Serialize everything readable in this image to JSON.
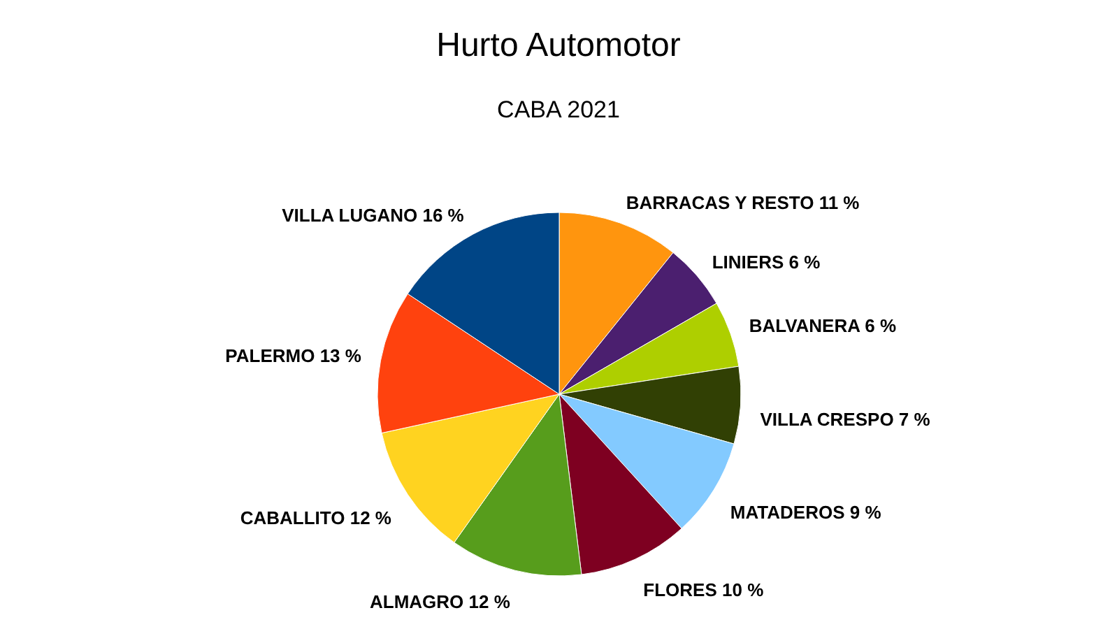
{
  "chart_data": {
    "type": "pie",
    "title": "Hurto Automotor",
    "subtitle": "CABA 2021",
    "categories": [
      "BARRACAS Y RESTO",
      "LINIERS",
      "BALVANERA",
      "VILLA CRESPO",
      "MATADEROS",
      "FLORES",
      "ALMAGRO",
      "CABALLITO",
      "PALERMO",
      "VILLA LUGANO"
    ],
    "values": [
      11,
      6,
      6,
      7,
      9,
      10,
      12,
      12,
      13,
      16
    ],
    "value_labels": [
      "11 %",
      "6 %",
      "6 %",
      "7 %",
      "9 %",
      "10 %",
      "12 %",
      "12 %",
      "13 %",
      "16 %"
    ],
    "colors": [
      "#ff950e",
      "#4b1f6f",
      "#aecf00",
      "#314004",
      "#83caff",
      "#7e0021",
      "#579d1c",
      "#ffd320",
      "#ff420e",
      "#004586"
    ]
  }
}
